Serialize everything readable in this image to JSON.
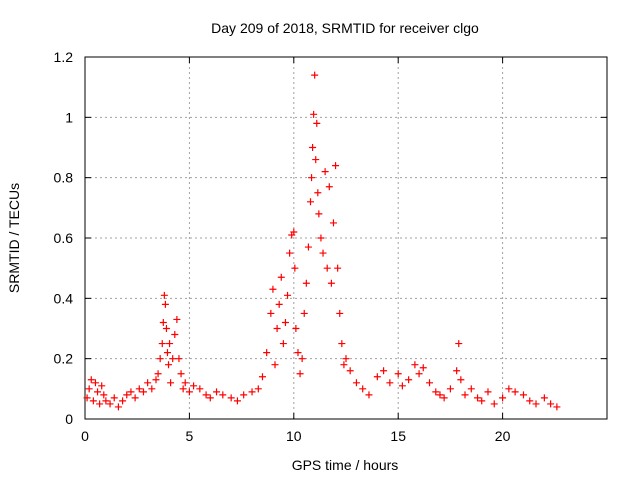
{
  "chart_data": {
    "type": "scatter",
    "title": "Day 209 of 2018, SRMTID for receiver clgo",
    "xlabel": "GPS time / hours",
    "ylabel": "SRMTID / TECUs",
    "xlim": [
      0,
      25
    ],
    "ylim": [
      0,
      1.2
    ],
    "xticks": [
      0,
      5,
      10,
      15,
      20
    ],
    "xtick_labels": [
      "0",
      "5",
      "10",
      "15",
      "20"
    ],
    "yticks": [
      0,
      0.2,
      0.4,
      0.6,
      0.8,
      1.0,
      1.2
    ],
    "ytick_labels": [
      "0",
      "0.2",
      "0.4",
      "0.6",
      "0.8",
      "1",
      "1.2"
    ],
    "grid": true,
    "marker": "+",
    "series_color": "#ff0000",
    "series": [
      {
        "name": "SRMTID",
        "x": [
          0.1,
          0.2,
          0.3,
          0.4,
          0.5,
          0.6,
          0.7,
          0.8,
          0.9,
          1.0,
          1.2,
          1.4,
          1.6,
          1.8,
          2.0,
          2.2,
          2.4,
          2.6,
          2.8,
          3.0,
          3.2,
          3.4,
          3.5,
          3.6,
          3.7,
          3.75,
          3.8,
          3.85,
          3.9,
          3.95,
          4.0,
          4.05,
          4.1,
          4.2,
          4.3,
          4.4,
          4.5,
          4.6,
          4.7,
          4.8,
          5.0,
          5.2,
          5.5,
          5.8,
          6.0,
          6.3,
          6.6,
          7.0,
          7.3,
          7.6,
          8.0,
          8.3,
          8.5,
          8.7,
          8.9,
          9.0,
          9.1,
          9.2,
          9.3,
          9.4,
          9.5,
          9.6,
          9.7,
          9.8,
          9.9,
          10.0,
          10.05,
          10.1,
          10.2,
          10.3,
          10.4,
          10.5,
          10.6,
          10.7,
          10.8,
          10.85,
          10.9,
          10.95,
          11.0,
          11.05,
          11.1,
          11.15,
          11.2,
          11.3,
          11.4,
          11.5,
          11.6,
          11.7,
          11.8,
          11.9,
          12.0,
          12.1,
          12.2,
          12.3,
          12.4,
          12.5,
          12.7,
          13.0,
          13.3,
          13.6,
          14.0,
          14.3,
          14.6,
          15.0,
          15.2,
          15.5,
          15.8,
          16.0,
          16.2,
          16.5,
          16.8,
          17.0,
          17.2,
          17.5,
          17.8,
          17.9,
          18.0,
          18.2,
          18.5,
          18.8,
          19.0,
          19.3,
          19.6,
          20.0,
          20.3,
          20.6,
          21.0,
          21.3,
          21.6,
          22.0,
          22.3,
          22.6
        ],
        "y": [
          0.07,
          0.1,
          0.13,
          0.06,
          0.12,
          0.09,
          0.05,
          0.11,
          0.08,
          0.06,
          0.05,
          0.07,
          0.04,
          0.06,
          0.08,
          0.09,
          0.07,
          0.1,
          0.09,
          0.12,
          0.1,
          0.13,
          0.15,
          0.2,
          0.25,
          0.32,
          0.41,
          0.38,
          0.3,
          0.22,
          0.18,
          0.25,
          0.12,
          0.2,
          0.28,
          0.33,
          0.2,
          0.15,
          0.1,
          0.12,
          0.09,
          0.11,
          0.1,
          0.08,
          0.07,
          0.09,
          0.08,
          0.07,
          0.06,
          0.08,
          0.09,
          0.1,
          0.14,
          0.22,
          0.35,
          0.43,
          0.18,
          0.3,
          0.38,
          0.47,
          0.25,
          0.32,
          0.41,
          0.55,
          0.61,
          0.62,
          0.5,
          0.3,
          0.22,
          0.15,
          0.2,
          0.35,
          0.45,
          0.57,
          0.72,
          0.8,
          0.9,
          1.01,
          1.14,
          0.86,
          0.98,
          0.75,
          0.68,
          0.6,
          0.55,
          0.82,
          0.5,
          0.77,
          0.45,
          0.65,
          0.84,
          0.5,
          0.35,
          0.25,
          0.18,
          0.2,
          0.16,
          0.12,
          0.1,
          0.08,
          0.14,
          0.16,
          0.12,
          0.15,
          0.11,
          0.13,
          0.18,
          0.15,
          0.17,
          0.12,
          0.09,
          0.08,
          0.07,
          0.1,
          0.16,
          0.25,
          0.13,
          0.08,
          0.1,
          0.07,
          0.06,
          0.09,
          0.05,
          0.07,
          0.1,
          0.09,
          0.08,
          0.06,
          0.05,
          0.07,
          0.05,
          0.04
        ]
      }
    ]
  }
}
